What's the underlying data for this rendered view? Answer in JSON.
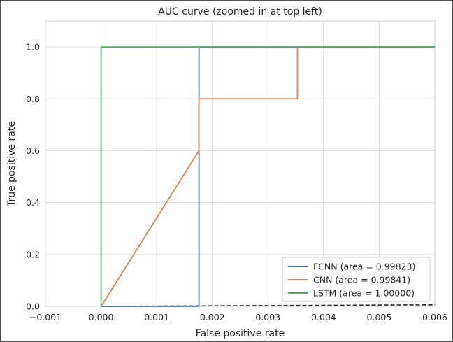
{
  "chart_data": {
    "type": "line",
    "title": "AUC curve (zoomed in at top left)",
    "xlabel": "False positive rate",
    "ylabel": "True positive rate",
    "xlim": [
      -0.001,
      0.006
    ],
    "ylim": [
      0.0,
      1.1
    ],
    "xticks": [
      -0.001,
      0.0,
      0.001,
      0.002,
      0.003,
      0.004,
      0.005,
      0.006
    ],
    "xtick_labels": [
      "−0.001",
      "0.000",
      "0.001",
      "0.002",
      "0.003",
      "0.004",
      "0.005",
      "0.006"
    ],
    "yticks": [
      0.0,
      0.2,
      0.4,
      0.6,
      0.8,
      1.0
    ],
    "ytick_labels": [
      "0.0",
      "0.2",
      "0.4",
      "0.6",
      "0.8",
      "1.0"
    ],
    "grid": true,
    "legend_position": "lower-right",
    "series": [
      {
        "name": "FCNN (area = 0.99823)",
        "color": "#4c72b0",
        "x": [
          0.0,
          0.00176,
          0.00176,
          0.00176,
          0.006
        ],
        "y": [
          0.0,
          0.0,
          0.6,
          1.0,
          1.0
        ]
      },
      {
        "name": "CNN (area = 0.99841)",
        "color": "#dd8452",
        "x": [
          0.0,
          0.00176,
          0.00176,
          0.00353,
          0.00353,
          0.006
        ],
        "y": [
          0.0,
          0.6,
          0.8,
          0.8,
          1.0,
          1.0
        ]
      },
      {
        "name": "LSTM (area = 1.00000)",
        "color": "#55a868",
        "x": [
          0.0,
          0.0,
          0.006
        ],
        "y": [
          0.0,
          1.0,
          1.0
        ]
      }
    ],
    "reference_line": {
      "style": "dashed",
      "color": "#262626",
      "x": [
        0.0,
        0.006
      ],
      "y": [
        0.0,
        0.006
      ]
    }
  }
}
